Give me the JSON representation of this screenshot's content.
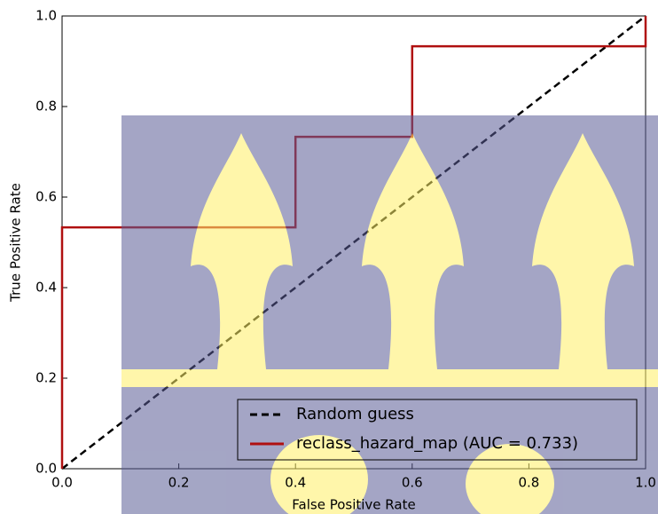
{
  "chart_data": {
    "type": "line",
    "xlabel": "False Positive Rate",
    "ylabel": "True Positive Rate",
    "xlim": [
      0,
      1
    ],
    "ylim": [
      0,
      1
    ],
    "xticks": [
      {
        "value": 0,
        "label": "0.0"
      },
      0.2,
      0.4,
      0.6,
      0.8,
      {
        "value": 1,
        "label": "1.0"
      }
    ],
    "yticks": [
      {
        "value": 0,
        "label": "0.0"
      },
      0.2,
      0.4,
      0.6,
      0.8,
      {
        "value": 1,
        "label": "1.0"
      }
    ],
    "legend": "lower right",
    "series": [
      {
        "name": "Random guess",
        "color": "#000000",
        "linestyle": "dashed",
        "x": [
          0,
          1
        ],
        "values": [
          0,
          1
        ]
      },
      {
        "name": "reclass_hazard_map (AUC = 0.733)",
        "color": "#b01010",
        "linestyle": "solid",
        "x": [
          0,
          0,
          0.4,
          0.4,
          0.6,
          0.6,
          1,
          1
        ],
        "values": [
          0,
          0.533,
          0.533,
          0.733,
          0.733,
          0.933,
          0.933,
          1
        ]
      }
    ]
  }
}
